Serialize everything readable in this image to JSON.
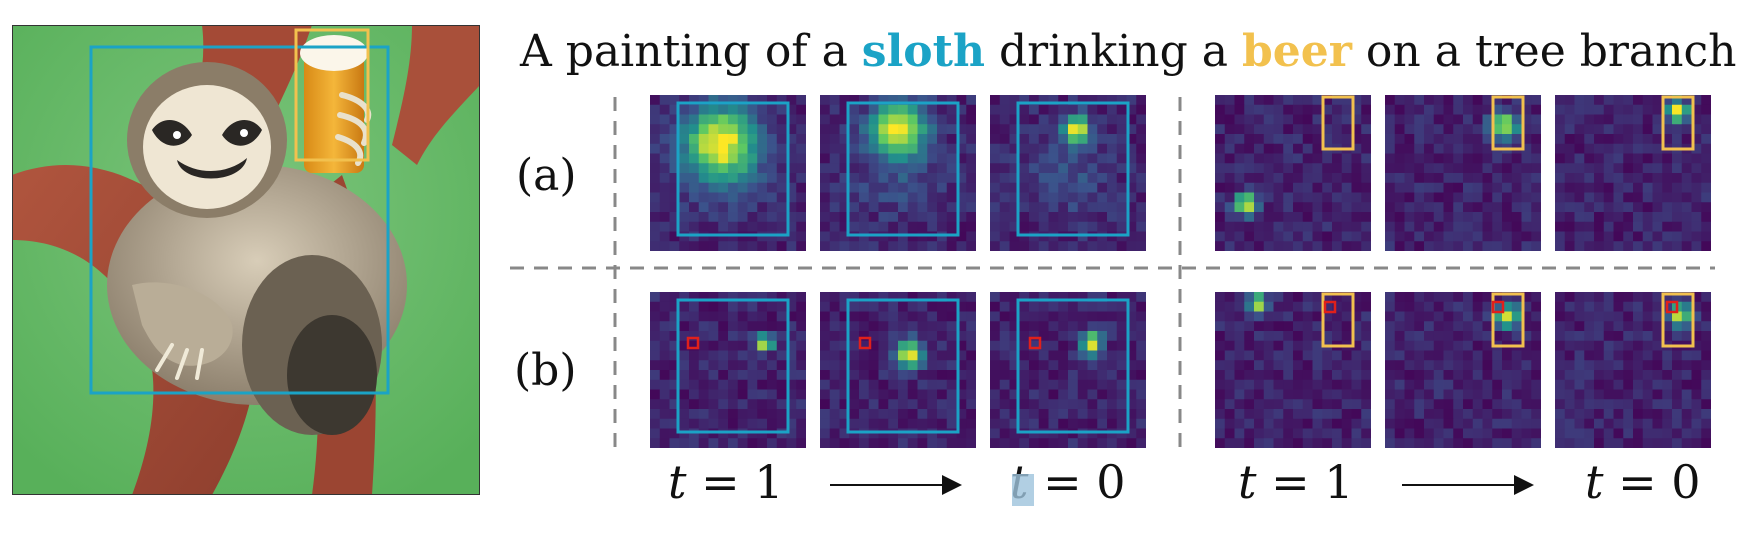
{
  "caption": {
    "prefix": "A painting of a ",
    "word1": "sloth",
    "middle": " drinking a ",
    "word2": "beer",
    "suffix": " on a tree branch."
  },
  "row_labels": [
    "(a)",
    "(b)"
  ],
  "time_labels": {
    "start_var": "t",
    "start_eq": " = 1",
    "end_var": "t",
    "end_eq": " = 0"
  },
  "colors": {
    "sloth": "#1ba3c6",
    "beer": "#f2c14e",
    "marker": "#e0201b",
    "background_green": "#5cb85c",
    "viridis_dark": "#440154"
  },
  "icons": [
    "sloth-painting-image",
    "attention-heatmap",
    "arrow-right-icon"
  ]
}
